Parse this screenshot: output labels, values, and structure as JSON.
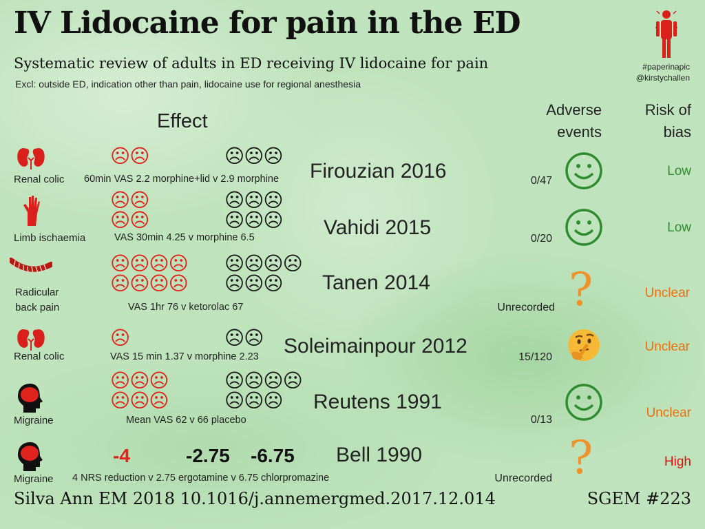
{
  "header": {
    "title": "IV Lidocaine for pain in the ED",
    "subtitle": "Systematic review of adults in ED receiving IV lidocaine for pain",
    "exclusions": "Excl: outside ED, indication other than pain, lidocaine use for regional anesthesia",
    "hashtag": "#paperinapic",
    "handle": "@kirstychallen"
  },
  "columns": {
    "effect": "Effect",
    "adverse_line1": "Adverse",
    "adverse_line2": "events",
    "risk_line1": "Risk of",
    "risk_line2": "bias"
  },
  "rows": [
    {
      "indication": "Renal colic",
      "effect_text": "60min VAS 2.2 morphine+lid v 2.9 morphine",
      "lid_faces_line1": "☹☹",
      "lid_faces_line2": "",
      "cmp_faces_line1": "☹☹☹",
      "cmp_faces_line2": "",
      "study": "Firouzian 2016",
      "adverse_events": "0/47",
      "adverse_icon": "smiley-icon",
      "risk_of_bias": "Low"
    },
    {
      "indication": "Limb ischaemia",
      "effect_text": "VAS 30min 4.25 v morphine 6.5",
      "lid_faces_line1": "☹☹",
      "lid_faces_line2": "☹☹",
      "cmp_faces_line1": "☹☹☹",
      "cmp_faces_line2": "☹☹☹",
      "study": "Vahidi 2015",
      "adverse_events": "0/20",
      "adverse_icon": "smiley-icon",
      "risk_of_bias": "Low"
    },
    {
      "indication_line1": "Radicular",
      "indication_line2": "back pain",
      "effect_text": "VAS 1hr 76 v ketorolac 67",
      "lid_faces_line1": "☹☹☹☹",
      "lid_faces_line2": "☹☹☹☹",
      "cmp_faces_line1": "☹☹☹☹",
      "cmp_faces_line2": "☹☹☹",
      "study": "Tanen 2014",
      "adverse_events": "Unrecorded",
      "adverse_icon": "question-mark-icon",
      "risk_of_bias": "Unclear"
    },
    {
      "indication": "Renal colic",
      "effect_text": "VAS 15 min 1.37 v morphine 2.23",
      "lid_faces_line1": "☹",
      "lid_faces_line2": "",
      "cmp_faces_line1": "☹☹",
      "cmp_faces_line2": "",
      "study": "Soleimainpour 2012",
      "adverse_events": "15/120",
      "adverse_icon": "thinking-face-icon",
      "risk_of_bias": "Unclear"
    },
    {
      "indication": "Migraine",
      "effect_text": "Mean VAS 62 v 66 placebo",
      "lid_faces_line1": "☹☹☹",
      "lid_faces_line2": "☹☹☹",
      "cmp_faces_line1": "☹☹☹☹",
      "cmp_faces_line2": "☹☹☹",
      "study": "Reutens 1991",
      "adverse_events": "0/13",
      "adverse_icon": "smiley-icon",
      "risk_of_bias": "Unclear"
    },
    {
      "indication": "Migraine",
      "effect_text": "4 NRS reduction v 2.75 ergotamine v 6.75 chlorpromazine",
      "lid_value": "-4",
      "cmp_value_1": "-2.75",
      "cmp_value_2": "-6.75",
      "study": "Bell 1990",
      "adverse_events": "Unrecorded",
      "adverse_icon": "question-mark-icon",
      "risk_of_bias": "High"
    }
  ],
  "footer": {
    "citation": "Silva Ann EM 2018 10.1016/j.annemergmed.2017.12.014",
    "episode": "SGEM #223"
  },
  "colors": {
    "background": "#bfe3bc",
    "sad_red": "#e0231c",
    "low": "#2e8b2e",
    "unclear": "#ee6e0e",
    "high": "#e01010",
    "smiley_green": "#2e8b2e",
    "question_orange": "#f0922a"
  }
}
